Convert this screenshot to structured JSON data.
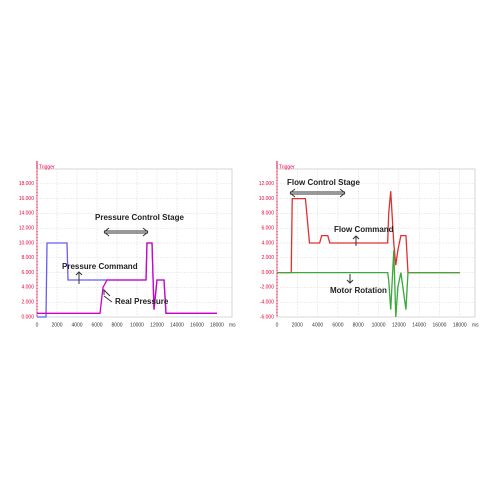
{
  "chart_data": [
    {
      "type": "line",
      "trigger_label": "Trigger",
      "x_unit": "ms",
      "annotations": [
        "Pressure Control Stage",
        "Pressure Command",
        "Real Pressure"
      ],
      "x": [
        0,
        900,
        1000,
        3000,
        3100,
        6300,
        6600,
        7000,
        10900,
        11000,
        11500,
        11700,
        12000,
        12700,
        12900,
        18000
      ],
      "series": [
        {
          "name": "Pressure Command",
          "color": "#6a5af0",
          "values": [
            0,
            0,
            10,
            10,
            5,
            5,
            5,
            5,
            5,
            10,
            10,
            1,
            5,
            5,
            0.5,
            0.5
          ]
        },
        {
          "name": "Real Pressure",
          "color": "#d000c8",
          "values": [
            0.5,
            0.5,
            0.5,
            0.5,
            0.5,
            0.5,
            4,
            5,
            5,
            10,
            10,
            1,
            5,
            5,
            0.5,
            0.5
          ]
        }
      ],
      "xlim": [
        0,
        19500
      ],
      "ylim": [
        0,
        20
      ],
      "xticks": [
        0,
        2000,
        4000,
        6000,
        8000,
        10000,
        12000,
        14000,
        16000,
        18000
      ],
      "yticks": [
        {
          "value": 0,
          "label": "0.000"
        },
        {
          "value": 2,
          "label": "2.000"
        },
        {
          "value": 4,
          "label": "4.000"
        },
        {
          "value": 6,
          "label": "6.000"
        },
        {
          "value": 8,
          "label": "8.000"
        },
        {
          "value": 10,
          "label": "10.000"
        },
        {
          "value": 12,
          "label": "12.000"
        },
        {
          "value": 14,
          "label": "14.000"
        },
        {
          "value": 16,
          "label": "16.000"
        },
        {
          "value": 18,
          "label": "18.000"
        }
      ],
      "grid": true,
      "axis_color": "#e8003c"
    },
    {
      "type": "line",
      "trigger_label": "Trigger",
      "x_unit": "ms",
      "annotations": [
        "Flow Control Stage",
        "Flow Command",
        "Motor Rotation"
      ],
      "x": [
        0,
        1400,
        1500,
        2800,
        3200,
        4200,
        4400,
        5000,
        5200,
        6300,
        6500,
        10900,
        11000,
        11200,
        11500,
        11700,
        11900,
        12200,
        12700,
        12900,
        18000
      ],
      "series": [
        {
          "name": "Flow Command",
          "color": "#e03030",
          "values": [
            0,
            0,
            10,
            10,
            4,
            4,
            5,
            5,
            4,
            4,
            4,
            4,
            8,
            11,
            4,
            1,
            3,
            5,
            5,
            0,
            0
          ]
        },
        {
          "name": "Motor Rotation",
          "color": "#3aa83a",
          "values": [
            0,
            0,
            0,
            0,
            0,
            0,
            0,
            0,
            0,
            0,
            0,
            0,
            -1,
            -5,
            3,
            -6,
            -2,
            0,
            -5,
            0,
            0
          ]
        }
      ],
      "xlim": [
        0,
        19500
      ],
      "ylim": [
        -6,
        14
      ],
      "xticks": [
        0,
        2000,
        4000,
        6000,
        8000,
        10000,
        12000,
        14000,
        16000,
        18000
      ],
      "yticks": [
        {
          "value": -6,
          "label": "-6.000"
        },
        {
          "value": -4,
          "label": "-4.000"
        },
        {
          "value": -2,
          "label": "-2.000"
        },
        {
          "value": 0,
          "label": "0.000"
        },
        {
          "value": 2,
          "label": "2.000"
        },
        {
          "value": 4,
          "label": "4.000"
        },
        {
          "value": 6,
          "label": "6.000"
        },
        {
          "value": 8,
          "label": "8.000"
        },
        {
          "value": 10,
          "label": "10.000"
        },
        {
          "value": 12,
          "label": "12.000"
        }
      ],
      "grid": true,
      "axis_color": "#e8003c"
    }
  ]
}
